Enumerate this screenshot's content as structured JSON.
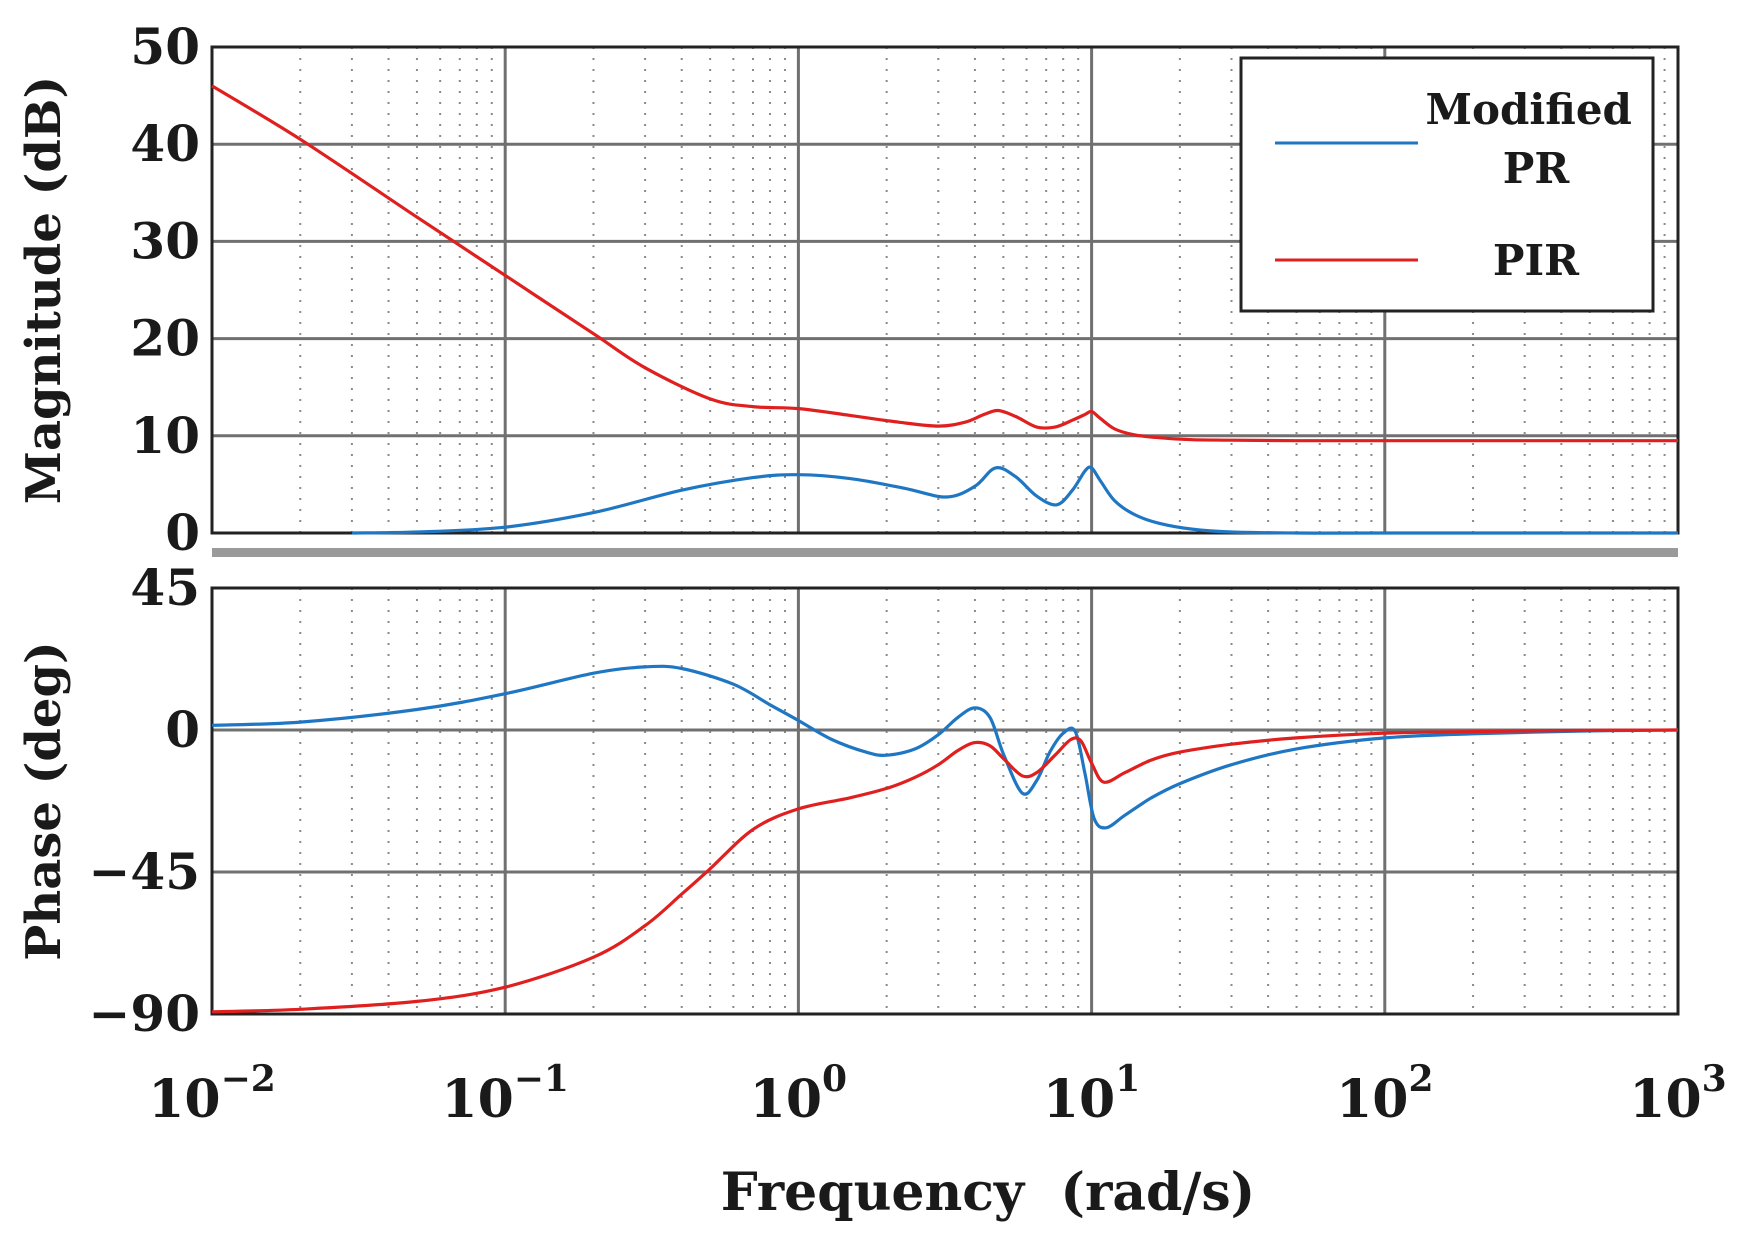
{
  "chart_data": [
    {
      "type": "line",
      "panel": "magnitude",
      "ylabel": "Magnitude (dB)",
      "xscale": "log",
      "xlim": [
        0.01,
        1000
      ],
      "ylim": [
        0,
        50
      ],
      "yticks": [
        "0",
        "10",
        "20",
        "30",
        "40",
        "50"
      ],
      "grid": true,
      "legend": "top-right",
      "series": [
        {
          "name": "Modified PR",
          "color": "#1f77c4",
          "x": [
            0.03,
            0.05,
            0.1,
            0.2,
            0.4,
            0.7,
            1.0,
            1.5,
            2.3,
            3.2,
            4.0,
            4.7,
            5.5,
            6.5,
            7.6,
            8.6,
            9.5,
            10.0,
            10.7,
            12,
            14,
            17,
            22,
            30,
            50,
            100,
            1000
          ],
          "y": [
            0.0,
            0.1,
            0.6,
            2.1,
            4.4,
            5.7,
            6.0,
            5.6,
            4.6,
            3.7,
            4.8,
            6.7,
            5.8,
            3.8,
            2.9,
            4.4,
            6.4,
            6.7,
            5.4,
            3.3,
            1.9,
            1.0,
            0.4,
            0.1,
            0.0,
            0.0,
            0.0
          ]
        },
        {
          "name": "PIR",
          "color": "#e01f1f",
          "x": [
            0.01,
            0.02,
            0.05,
            0.1,
            0.2,
            0.3,
            0.5,
            0.7,
            1.0,
            1.5,
            2.2,
            3.0,
            3.7,
            4.3,
            4.8,
            5.5,
            6.5,
            7.5,
            8.6,
            9.5,
            10.0,
            10.7,
            12,
            14,
            17,
            22,
            30,
            50,
            100,
            1000
          ],
          "y": [
            46.0,
            40.5,
            32.5,
            26.5,
            20.5,
            17.0,
            13.8,
            13.0,
            12.8,
            12.1,
            11.4,
            11.0,
            11.4,
            12.2,
            12.6,
            12.0,
            10.9,
            10.9,
            11.6,
            12.2,
            12.5,
            11.8,
            10.7,
            10.1,
            9.8,
            9.6,
            9.55,
            9.5,
            9.5,
            9.5
          ]
        }
      ]
    },
    {
      "type": "line",
      "panel": "phase",
      "ylabel": "Phase (deg)",
      "xlabel": "Frequency  (rad/s)",
      "xscale": "log",
      "xlim": [
        0.01,
        1000
      ],
      "ylim": [
        -90,
        45
      ],
      "yticks": [
        "−90",
        "−45",
        "0",
        "45"
      ],
      "xticks": [
        {
          "base": "10",
          "exp": "−2"
        },
        {
          "base": "10",
          "exp": "−1"
        },
        {
          "base": "10",
          "exp": "0"
        },
        {
          "base": "10",
          "exp": "1"
        },
        {
          "base": "10",
          "exp": "2"
        },
        {
          "base": "10",
          "exp": "3"
        }
      ],
      "grid": true,
      "series": [
        {
          "name": "Modified PR",
          "color": "#1f77c4",
          "x": [
            0.01,
            0.02,
            0.05,
            0.1,
            0.2,
            0.3,
            0.4,
            0.6,
            0.8,
            1.0,
            1.3,
            1.7,
            2.0,
            2.5,
            3.0,
            3.5,
            4.0,
            4.5,
            5.0,
            5.8,
            6.5,
            7.2,
            8.0,
            8.8,
            9.5,
            10.2,
            11.2,
            13,
            16,
            20,
            30,
            50,
            100,
            200,
            500,
            1000
          ],
          "y": [
            1.5,
            2.5,
            6.5,
            11.5,
            18.0,
            20.0,
            19.5,
            14.5,
            8.0,
            3.0,
            -3.0,
            -7.0,
            -8.0,
            -6.0,
            -1.5,
            4.0,
            7.0,
            4.0,
            -7.5,
            -20.0,
            -16.0,
            -7.0,
            -1.0,
            -0.5,
            -14.0,
            -28.0,
            -31.0,
            -27.0,
            -21.5,
            -17.0,
            -11.0,
            -6.0,
            -2.5,
            -1.2,
            -0.3,
            0.0
          ]
        },
        {
          "name": "PIR",
          "color": "#e01f1f",
          "x": [
            0.01,
            0.02,
            0.05,
            0.1,
            0.2,
            0.3,
            0.4,
            0.5,
            0.7,
            1.0,
            1.5,
            2.0,
            2.5,
            3.0,
            3.5,
            4.0,
            4.5,
            5.0,
            5.8,
            6.5,
            7.5,
            8.5,
            9.2,
            10.0,
            11.0,
            13,
            16,
            20,
            30,
            50,
            100,
            200,
            500,
            1000
          ],
          "y": [
            -89.3,
            -88.5,
            -86.0,
            -81.5,
            -72.0,
            -62.0,
            -52.0,
            -44.0,
            -31.5,
            -25.0,
            -21.5,
            -18.5,
            -15.0,
            -11.0,
            -6.5,
            -4.0,
            -5.0,
            -9.0,
            -14.5,
            -13.5,
            -8.0,
            -3.0,
            -3.5,
            -10.5,
            -16.5,
            -13.5,
            -9.5,
            -7.0,
            -4.5,
            -2.5,
            -1.0,
            -0.5,
            -0.1,
            0.0
          ]
        }
      ]
    }
  ]
}
